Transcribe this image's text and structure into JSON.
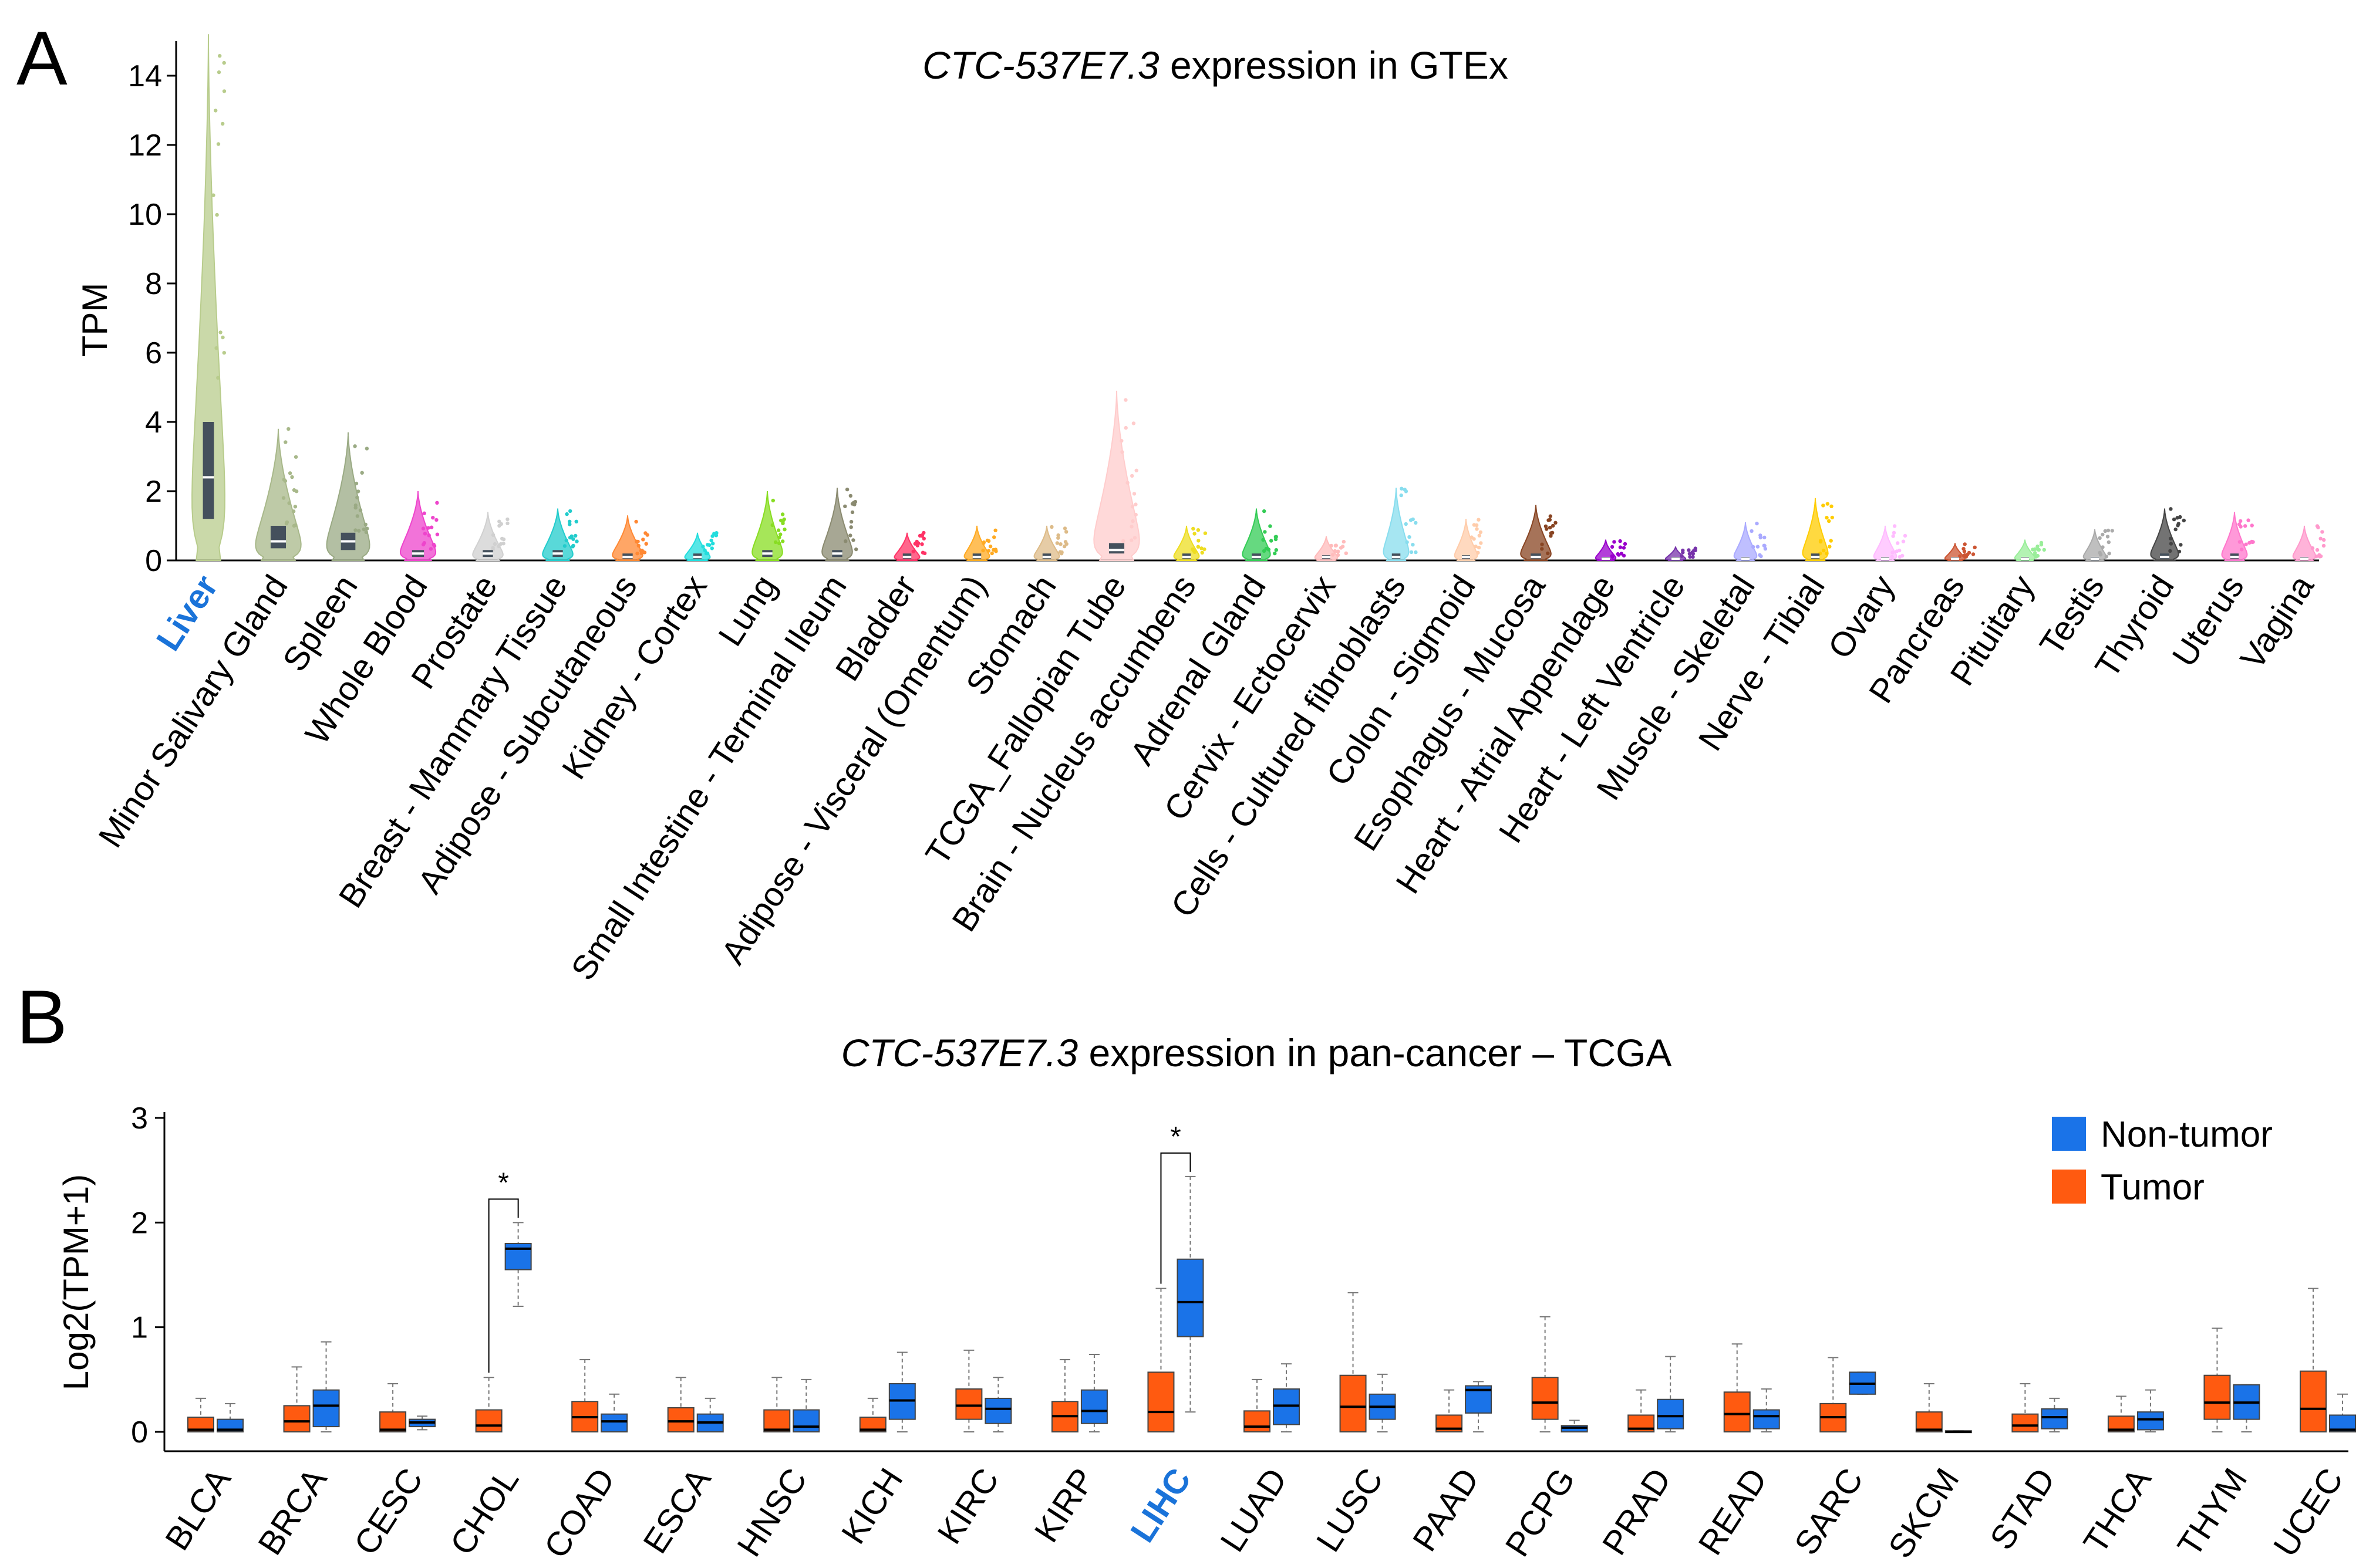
{
  "panels": {
    "a": {
      "letter": "A"
    },
    "b": {
      "letter": "B"
    }
  },
  "chart_data": [
    {
      "type": "violin",
      "title_italic": "CTC-537E7.3",
      "title_rest": " expression in GTEx",
      "ylabel": "TPM",
      "ylim": [
        0,
        15
      ],
      "yticks": [
        0,
        2,
        4,
        6,
        8,
        10,
        12,
        14
      ],
      "highlight_category": "Liver",
      "highlight_color": "#1a73d9",
      "categories": [
        {
          "name": "Liver",
          "color": "#b8cc8c",
          "max": 15.2,
          "density": 0.65,
          "q1": 1.2,
          "median": 2.4,
          "q3": 4.0
        },
        {
          "name": "Minor Salivary Gland",
          "color": "#a8b88a",
          "max": 3.8,
          "density": 0.9,
          "q1": 0.35,
          "median": 0.55,
          "q3": 1.0
        },
        {
          "name": "Spleen",
          "color": "#9aaa84",
          "max": 3.7,
          "density": 0.85,
          "q1": 0.3,
          "median": 0.55,
          "q3": 0.8
        },
        {
          "name": "Whole Blood",
          "color": "#ee44cc",
          "max": 2.0,
          "density": 0.7,
          "q1": 0.1,
          "median": 0.2,
          "q3": 0.3
        },
        {
          "name": "Prostate",
          "color": "#d0d0d0",
          "max": 1.4,
          "density": 0.6,
          "q1": 0.1,
          "median": 0.2,
          "q3": 0.3
        },
        {
          "name": "Breast - Mammary Tissue",
          "color": "#22cccc",
          "max": 1.5,
          "density": 0.6,
          "q1": 0.1,
          "median": 0.2,
          "q3": 0.3
        },
        {
          "name": "Adipose - Subcutaneous",
          "color": "#ff8833",
          "max": 1.3,
          "density": 0.6,
          "q1": 0.05,
          "median": 0.1,
          "q3": 0.2
        },
        {
          "name": "Kidney - Cortex",
          "color": "#22dddd",
          "max": 0.8,
          "density": 0.5,
          "q1": 0.05,
          "median": 0.1,
          "q3": 0.2
        },
        {
          "name": "Lung",
          "color": "#88dd22",
          "max": 2.0,
          "density": 0.6,
          "q1": 0.1,
          "median": 0.2,
          "q3": 0.3
        },
        {
          "name": "Small Intestine - Terminal Ileum",
          "color": "#8a8a70",
          "max": 2.1,
          "density": 0.6,
          "q1": 0.1,
          "median": 0.2,
          "q3": 0.3
        },
        {
          "name": "Bladder",
          "color": "#ff3366",
          "max": 0.8,
          "density": 0.5,
          "q1": 0.05,
          "median": 0.1,
          "q3": 0.2
        },
        {
          "name": "Adipose - Visceral (Omentum)",
          "color": "#ffaa22",
          "max": 1.0,
          "density": 0.5,
          "q1": 0.05,
          "median": 0.1,
          "q3": 0.2
        },
        {
          "name": "Stomach",
          "color": "#ddbb88",
          "max": 1.0,
          "density": 0.5,
          "q1": 0.05,
          "median": 0.1,
          "q3": 0.2
        },
        {
          "name": "TCGA_Fallopian Tube",
          "color": "#ffcccc",
          "max": 4.9,
          "density": 0.9,
          "q1": 0.2,
          "median": 0.3,
          "q3": 0.5
        },
        {
          "name": "Brain - Nucleus accumbens",
          "color": "#eedd22",
          "max": 1.0,
          "density": 0.5,
          "q1": 0.05,
          "median": 0.1,
          "q3": 0.2
        },
        {
          "name": "Adrenal Gland",
          "color": "#33cc55",
          "max": 1.5,
          "density": 0.55,
          "q1": 0.05,
          "median": 0.1,
          "q3": 0.2
        },
        {
          "name": "Cervix - Ectocervix",
          "color": "#ffbbbb",
          "max": 0.7,
          "density": 0.45,
          "q1": 0.05,
          "median": 0.1,
          "q3": 0.15
        },
        {
          "name": "Cells - Cultured fibroblasts",
          "color": "#88ddee",
          "max": 2.1,
          "density": 0.5,
          "q1": 0.05,
          "median": 0.1,
          "q3": 0.2
        },
        {
          "name": "Colon - Sigmoid",
          "color": "#ffccaa",
          "max": 1.2,
          "density": 0.45,
          "q1": 0.05,
          "median": 0.1,
          "q3": 0.15
        },
        {
          "name": "Esophagus - Mucosa",
          "color": "#884422",
          "max": 1.6,
          "density": 0.6,
          "q1": 0.05,
          "median": 0.1,
          "q3": 0.2
        },
        {
          "name": "Heart - Atrial Appendage",
          "color": "#9900cc",
          "max": 0.6,
          "density": 0.4,
          "q1": 0.02,
          "median": 0.05,
          "q3": 0.1
        },
        {
          "name": "Heart - Left Ventricle",
          "color": "#7733aa",
          "max": 0.4,
          "density": 0.4,
          "q1": 0.02,
          "median": 0.05,
          "q3": 0.1
        },
        {
          "name": "Muscle - Skeletal",
          "color": "#aaaaff",
          "max": 1.1,
          "density": 0.45,
          "q1": 0.02,
          "median": 0.05,
          "q3": 0.1
        },
        {
          "name": "Nerve - Tibial",
          "color": "#ffcc00",
          "max": 1.8,
          "density": 0.5,
          "q1": 0.05,
          "median": 0.1,
          "q3": 0.2
        },
        {
          "name": "Ovary",
          "color": "#ffbbff",
          "max": 1.0,
          "density": 0.45,
          "q1": 0.02,
          "median": 0.05,
          "q3": 0.1
        },
        {
          "name": "Pancreas",
          "color": "#cc5533",
          "max": 0.5,
          "density": 0.4,
          "q1": 0.02,
          "median": 0.05,
          "q3": 0.1
        },
        {
          "name": "Pituitary",
          "color": "#99ee99",
          "max": 0.6,
          "density": 0.4,
          "q1": 0.02,
          "median": 0.05,
          "q3": 0.1
        },
        {
          "name": "Testis",
          "color": "#aaaaaa",
          "max": 0.9,
          "density": 0.45,
          "q1": 0.02,
          "median": 0.05,
          "q3": 0.1
        },
        {
          "name": "Thyroid",
          "color": "#444444",
          "max": 1.5,
          "density": 0.55,
          "q1": 0.05,
          "median": 0.1,
          "q3": 0.2
        },
        {
          "name": "Uterus",
          "color": "#ff77cc",
          "max": 1.4,
          "density": 0.5,
          "q1": 0.05,
          "median": 0.1,
          "q3": 0.2
        },
        {
          "name": "Vagina",
          "color": "#ff99cc",
          "max": 1.0,
          "density": 0.45,
          "q1": 0.02,
          "median": 0.05,
          "q3": 0.1
        }
      ]
    },
    {
      "type": "box",
      "title_italic": "CTC-537E7.3",
      "title_rest": " expression in pan-cancer – TCGA",
      "ylabel": "Log2(TPM+1)",
      "ylim": [
        0,
        3
      ],
      "yticks": [
        0,
        1,
        2,
        3
      ],
      "highlight_category": "LIHC",
      "highlight_color": "#1a73d9",
      "legend": [
        {
          "name": "Non-tumor",
          "color": "#1a73e8"
        },
        {
          "name": "Tumor",
          "color": "#ff5a10"
        }
      ],
      "significance": [
        {
          "category": "CHOL",
          "mark": "*"
        },
        {
          "category": "LIHC",
          "mark": "*"
        }
      ],
      "categories": [
        {
          "name": "BLCA",
          "tumor": {
            "min": 0,
            "q1": 0,
            "median": 0.02,
            "q3": 0.14,
            "max": 0.32
          },
          "normal": {
            "min": 0,
            "q1": 0,
            "median": 0.02,
            "q3": 0.12,
            "max": 0.27
          }
        },
        {
          "name": "BRCA",
          "tumor": {
            "min": 0,
            "q1": 0,
            "median": 0.1,
            "q3": 0.25,
            "max": 0.62
          },
          "normal": {
            "min": 0,
            "q1": 0.05,
            "median": 0.25,
            "q3": 0.4,
            "max": 0.86
          }
        },
        {
          "name": "CESC",
          "tumor": {
            "min": 0,
            "q1": 0,
            "median": 0.02,
            "q3": 0.19,
            "max": 0.46
          },
          "normal": {
            "min": 0.02,
            "q1": 0.05,
            "median": 0.09,
            "q3": 0.12,
            "max": 0.15
          }
        },
        {
          "name": "CHOL",
          "tumor": {
            "min": 0,
            "q1": 0,
            "median": 0.06,
            "q3": 0.21,
            "max": 0.52
          },
          "normal": {
            "min": 1.2,
            "q1": 1.55,
            "median": 1.75,
            "q3": 1.8,
            "max": 2.0
          }
        },
        {
          "name": "COAD",
          "tumor": {
            "min": 0,
            "q1": 0,
            "median": 0.14,
            "q3": 0.29,
            "max": 0.69
          },
          "normal": {
            "min": 0,
            "q1": 0,
            "median": 0.1,
            "q3": 0.17,
            "max": 0.36
          }
        },
        {
          "name": "ESCA",
          "tumor": {
            "min": 0,
            "q1": 0,
            "median": 0.1,
            "q3": 0.23,
            "max": 0.52
          },
          "normal": {
            "min": 0,
            "q1": 0,
            "median": 0.09,
            "q3": 0.17,
            "max": 0.32
          }
        },
        {
          "name": "HNSC",
          "tumor": {
            "min": 0,
            "q1": 0,
            "median": 0.02,
            "q3": 0.21,
            "max": 0.52
          },
          "normal": {
            "min": 0,
            "q1": 0,
            "median": 0.05,
            "q3": 0.21,
            "max": 0.5
          }
        },
        {
          "name": "KICH",
          "tumor": {
            "min": 0,
            "q1": 0,
            "median": 0.02,
            "q3": 0.14,
            "max": 0.32
          },
          "normal": {
            "min": 0,
            "q1": 0.12,
            "median": 0.3,
            "q3": 0.46,
            "max": 0.76
          }
        },
        {
          "name": "KIRC",
          "tumor": {
            "min": 0,
            "q1": 0.12,
            "median": 0.25,
            "q3": 0.41,
            "max": 0.78
          },
          "normal": {
            "min": 0,
            "q1": 0.08,
            "median": 0.22,
            "q3": 0.32,
            "max": 0.52
          }
        },
        {
          "name": "KIRP",
          "tumor": {
            "min": 0,
            "q1": 0,
            "median": 0.15,
            "q3": 0.29,
            "max": 0.69
          },
          "normal": {
            "min": 0,
            "q1": 0.08,
            "median": 0.2,
            "q3": 0.4,
            "max": 0.74
          }
        },
        {
          "name": "LIHC",
          "tumor": {
            "min": 0,
            "q1": 0,
            "median": 0.19,
            "q3": 0.57,
            "max": 1.37
          },
          "normal": {
            "min": 0.19,
            "q1": 0.91,
            "median": 1.24,
            "q3": 1.65,
            "max": 2.44
          }
        },
        {
          "name": "LUAD",
          "tumor": {
            "min": 0,
            "q1": 0,
            "median": 0.05,
            "q3": 0.2,
            "max": 0.5
          },
          "normal": {
            "min": 0,
            "q1": 0.07,
            "median": 0.25,
            "q3": 0.41,
            "max": 0.65
          }
        },
        {
          "name": "LUSC",
          "tumor": {
            "min": 0,
            "q1": 0,
            "median": 0.24,
            "q3": 0.54,
            "max": 1.33
          },
          "normal": {
            "min": 0,
            "q1": 0.12,
            "median": 0.24,
            "q3": 0.36,
            "max": 0.55
          }
        },
        {
          "name": "PAAD",
          "tumor": {
            "min": 0,
            "q1": 0,
            "median": 0.03,
            "q3": 0.16,
            "max": 0.4
          },
          "normal": {
            "min": 0,
            "q1": 0.18,
            "median": 0.4,
            "q3": 0.44,
            "max": 0.48
          }
        },
        {
          "name": "PCPG",
          "tumor": {
            "min": 0,
            "q1": 0.12,
            "median": 0.28,
            "q3": 0.52,
            "max": 1.1
          },
          "normal": {
            "min": 0,
            "q1": 0,
            "median": 0.04,
            "q3": 0.06,
            "max": 0.11
          }
        },
        {
          "name": "PRAD",
          "tumor": {
            "min": 0,
            "q1": 0,
            "median": 0.03,
            "q3": 0.16,
            "max": 0.4
          },
          "normal": {
            "min": 0,
            "q1": 0.03,
            "median": 0.15,
            "q3": 0.31,
            "max": 0.72
          }
        },
        {
          "name": "READ",
          "tumor": {
            "min": 0,
            "q1": 0,
            "median": 0.17,
            "q3": 0.38,
            "max": 0.84
          },
          "normal": {
            "min": 0,
            "q1": 0.03,
            "median": 0.15,
            "q3": 0.21,
            "max": 0.41
          }
        },
        {
          "name": "SARC",
          "tumor": {
            "min": 0,
            "q1": 0,
            "median": 0.14,
            "q3": 0.27,
            "max": 0.71
          },
          "normal": {
            "min": 0.36,
            "q1": 0.36,
            "median": 0.46,
            "q3": 0.57,
            "max": 0.57
          }
        },
        {
          "name": "SKCM",
          "tumor": {
            "min": 0,
            "q1": 0,
            "median": 0.02,
            "q3": 0.19,
            "max": 0.46
          },
          "normal": {
            "min": 0,
            "q1": 0,
            "median": 0,
            "q3": 0.01,
            "max": 0.01
          }
        },
        {
          "name": "STAD",
          "tumor": {
            "min": 0,
            "q1": 0,
            "median": 0.06,
            "q3": 0.17,
            "max": 0.46
          },
          "normal": {
            "min": 0,
            "q1": 0.03,
            "median": 0.14,
            "q3": 0.22,
            "max": 0.32
          }
        },
        {
          "name": "THCA",
          "tumor": {
            "min": 0,
            "q1": 0,
            "median": 0.02,
            "q3": 0.15,
            "max": 0.34
          },
          "normal": {
            "min": 0,
            "q1": 0.02,
            "median": 0.12,
            "q3": 0.19,
            "max": 0.4
          }
        },
        {
          "name": "THYM",
          "tumor": {
            "min": 0,
            "q1": 0.12,
            "median": 0.28,
            "q3": 0.54,
            "max": 0.99
          },
          "normal": {
            "min": 0,
            "q1": 0.12,
            "median": 0.28,
            "q3": 0.45,
            "max": 0.45
          }
        },
        {
          "name": "UCEC",
          "tumor": {
            "min": 0,
            "q1": 0,
            "median": 0.22,
            "q3": 0.58,
            "max": 1.37
          },
          "normal": {
            "min": 0,
            "q1": 0,
            "median": 0.02,
            "q3": 0.16,
            "max": 0.36
          }
        }
      ]
    }
  ]
}
